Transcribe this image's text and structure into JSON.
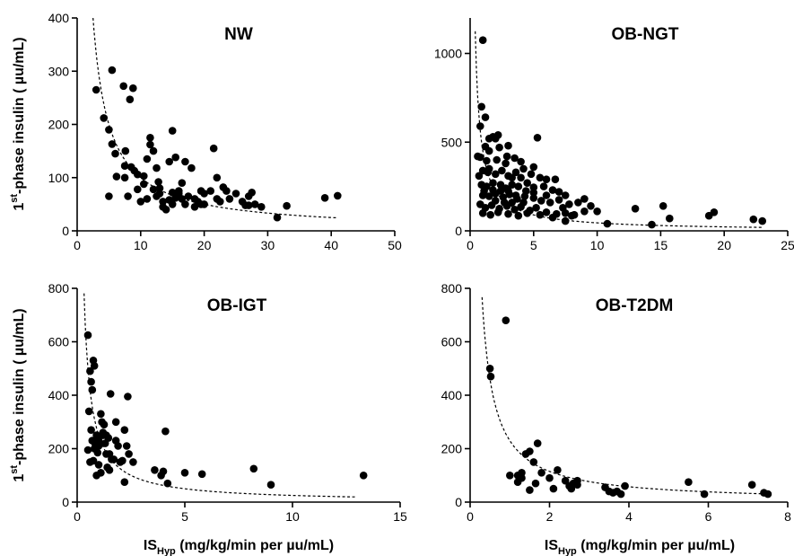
{
  "chart_data": [
    {
      "type": "scatter",
      "title": "NW",
      "xlabel": "",
      "ylabel": {
        "sup": "st",
        "pre": "1",
        "post": "-phase insulin  ( µu/mL)"
      },
      "xlim": [
        0,
        50
      ],
      "ylim": [
        0,
        400
      ],
      "xticks": [
        "0",
        "10",
        "20",
        "30",
        "40",
        "50"
      ],
      "yticks": [
        "0",
        "100",
        "200",
        "300",
        "400"
      ],
      "fit_curve": {
        "style": "dashed",
        "k": 1000,
        "x_range": [
          2.5,
          41
        ]
      },
      "points": [
        [
          3,
          265
        ],
        [
          4.2,
          212
        ],
        [
          5.5,
          302
        ],
        [
          5,
          190
        ],
        [
          5.5,
          163
        ],
        [
          6,
          145
        ],
        [
          6.2,
          102
        ],
        [
          7.3,
          272
        ],
        [
          7.5,
          122
        ],
        [
          7.6,
          150
        ],
        [
          8.3,
          247
        ],
        [
          8.8,
          268
        ],
        [
          9,
          113
        ],
        [
          9.5,
          106
        ],
        [
          8,
          65
        ],
        [
          5,
          65
        ],
        [
          7.5,
          100
        ],
        [
          10.5,
          103
        ],
        [
          11,
          135
        ],
        [
          11.5,
          162
        ],
        [
          11.5,
          175
        ],
        [
          12,
          150
        ],
        [
          12.5,
          118
        ],
        [
          12.8,
          92
        ],
        [
          13,
          80
        ],
        [
          13.5,
          55
        ],
        [
          14,
          40
        ],
        [
          14.5,
          130
        ],
        [
          15,
          188
        ],
        [
          15.5,
          138
        ],
        [
          16,
          75
        ],
        [
          16.5,
          90
        ],
        [
          17,
          130
        ],
        [
          17.5,
          65
        ],
        [
          18,
          118
        ],
        [
          18.5,
          60
        ],
        [
          19,
          55
        ],
        [
          19.5,
          50
        ],
        [
          20,
          70
        ],
        [
          21,
          75
        ],
        [
          21.5,
          155
        ],
        [
          22,
          100
        ],
        [
          23,
          82
        ],
        [
          24,
          60
        ],
        [
          25,
          70
        ],
        [
          26,
          55
        ],
        [
          27,
          65
        ],
        [
          27.5,
          72
        ],
        [
          28,
          50
        ],
        [
          29,
          45
        ],
        [
          31.5,
          25
        ],
        [
          33,
          47
        ],
        [
          39,
          62
        ],
        [
          41,
          66
        ],
        [
          10,
          55
        ],
        [
          11,
          60
        ],
        [
          12.5,
          65
        ],
        [
          13.5,
          45
        ],
        [
          14.5,
          58
        ],
        [
          15.5,
          62
        ],
        [
          16,
          70
        ],
        [
          17,
          50
        ],
        [
          18.5,
          45
        ],
        [
          20,
          50
        ],
        [
          22,
          60
        ],
        [
          23.5,
          75
        ],
        [
          26.5,
          48
        ],
        [
          12,
          78
        ],
        [
          13,
          70
        ],
        [
          15,
          72
        ],
        [
          10.5,
          88
        ],
        [
          9.5,
          78
        ],
        [
          8.5,
          120
        ],
        [
          16.5,
          60
        ],
        [
          19.5,
          75
        ],
        [
          22.5,
          55
        ],
        [
          27,
          48
        ],
        [
          15,
          50
        ]
      ]
    },
    {
      "type": "scatter",
      "title": "OB-NGT",
      "xlabel": "",
      "ylabel": "",
      "xlim": [
        0,
        25
      ],
      "ylim": [
        0,
        1200
      ],
      "xticks": [
        "0",
        "5",
        "10",
        "15",
        "20",
        "25"
      ],
      "yticks": [
        "0",
        "500",
        "1000"
      ],
      "fit_curve": {
        "style": "dashed",
        "k": 450,
        "x_range": [
          0.4,
          23
        ]
      },
      "points": [
        [
          1,
          1075
        ],
        [
          0.9,
          700
        ],
        [
          1.2,
          640
        ],
        [
          0.8,
          590
        ],
        [
          1.5,
          520
        ],
        [
          1.8,
          530
        ],
        [
          2,
          520
        ],
        [
          2.2,
          540
        ],
        [
          5.3,
          525
        ],
        [
          1.2,
          475
        ],
        [
          1.5,
          450
        ],
        [
          2.3,
          470
        ],
        [
          3,
          480
        ],
        [
          0.8,
          415
        ],
        [
          1.3,
          395
        ],
        [
          2.1,
          400
        ],
        [
          2.9,
          420
        ],
        [
          3.5,
          410
        ],
        [
          4,
          390
        ],
        [
          1,
          340
        ],
        [
          1.4,
          330
        ],
        [
          2,
          320
        ],
        [
          2.5,
          340
        ],
        [
          3,
          310
        ],
        [
          3.6,
          330
        ],
        [
          4.2,
          350
        ],
        [
          4.8,
          320
        ],
        [
          5.5,
          300
        ],
        [
          6,
          290
        ],
        [
          6.7,
          290
        ],
        [
          0.9,
          260
        ],
        [
          1.3,
          250
        ],
        [
          1.8,
          270
        ],
        [
          2.4,
          260
        ],
        [
          2.8,
          240
        ],
        [
          3.3,
          260
        ],
        [
          3.8,
          250
        ],
        [
          4.5,
          270
        ],
        [
          5,
          245
        ],
        [
          5.8,
          250
        ],
        [
          6.5,
          230
        ],
        [
          7,
          220
        ],
        [
          7.5,
          200
        ],
        [
          1,
          200
        ],
        [
          1.5,
          195
        ],
        [
          2,
          210
        ],
        [
          2.6,
          190
        ],
        [
          3.1,
          205
        ],
        [
          3.7,
          180
        ],
        [
          4.3,
          195
        ],
        [
          5,
          185
        ],
        [
          5.6,
          170
        ],
        [
          6.3,
          160
        ],
        [
          7,
          175
        ],
        [
          7.8,
          150
        ],
        [
          8.5,
          160
        ],
        [
          9,
          180
        ],
        [
          9.5,
          140
        ],
        [
          10,
          110
        ],
        [
          0.8,
          150
        ],
        [
          1.2,
          130
        ],
        [
          1.7,
          145
        ],
        [
          2.3,
          125
        ],
        [
          2.9,
          140
        ],
        [
          3.5,
          120
        ],
        [
          4,
          135
        ],
        [
          4.7,
          115
        ],
        [
          5.2,
          130
        ],
        [
          6,
          105
        ],
        [
          6.8,
          95
        ],
        [
          7.5,
          100
        ],
        [
          8.2,
          90
        ],
        [
          9,
          110
        ],
        [
          1,
          100
        ],
        [
          1.6,
          90
        ],
        [
          2.2,
          105
        ],
        [
          3,
          95
        ],
        [
          3.8,
          85
        ],
        [
          4.5,
          100
        ],
        [
          5.5,
          90
        ],
        [
          6.5,
          75
        ],
        [
          7.5,
          55
        ],
        [
          8,
          85
        ],
        [
          10.8,
          40
        ],
        [
          13,
          125
        ],
        [
          14.3,
          35
        ],
        [
          15.2,
          140
        ],
        [
          15.7,
          70
        ],
        [
          18.8,
          85
        ],
        [
          19.2,
          105
        ],
        [
          22.3,
          65
        ],
        [
          23,
          55
        ],
        [
          1.5,
          350
        ],
        [
          2.8,
          380
        ],
        [
          3.3,
          300
        ],
        [
          4,
          300
        ],
        [
          5,
          360
        ],
        [
          2,
          170
        ],
        [
          2.7,
          160
        ],
        [
          3.3,
          160
        ],
        [
          4.2,
          160
        ],
        [
          5,
          215
        ],
        [
          6,
          200
        ],
        [
          7.3,
          130
        ],
        [
          0.6,
          420
        ],
        [
          0.7,
          310
        ],
        [
          1.1,
          225
        ],
        [
          1.8,
          230
        ],
        [
          2.4,
          225
        ],
        [
          3,
          225
        ],
        [
          3.6,
          200
        ],
        [
          4.4,
          225
        ]
      ]
    },
    {
      "type": "scatter",
      "title": "OB-IGT",
      "xlabel": {
        "pre": "IS",
        "sub": "Hyp",
        "post": "  (mg/kg/min per  µu/mL)"
      },
      "ylabel": {
        "sup": "st",
        "pre": "1",
        "post": "-phase insulin  ( µu/mL)"
      },
      "xlim": [
        0,
        15
      ],
      "ylim": [
        0,
        800
      ],
      "xticks": [
        "0",
        "5",
        "10",
        "15"
      ],
      "yticks": [
        "0",
        "200",
        "400",
        "600",
        "800"
      ],
      "fit_curve": {
        "style": "dashed",
        "k": 250,
        "x_range": [
          0.32,
          13
        ]
      },
      "points": [
        [
          0.5,
          625
        ],
        [
          0.6,
          490
        ],
        [
          0.65,
          450
        ],
        [
          0.7,
          420
        ],
        [
          0.75,
          530
        ],
        [
          0.8,
          510
        ],
        [
          0.55,
          340
        ],
        [
          0.65,
          270
        ],
        [
          0.7,
          230
        ],
        [
          0.8,
          200
        ],
        [
          0.9,
          250
        ],
        [
          0.95,
          185
        ],
        [
          0.5,
          195
        ],
        [
          0.6,
          150
        ],
        [
          0.75,
          155
        ],
        [
          0.85,
          215
        ],
        [
          1,
          210
        ],
        [
          1.1,
          330
        ],
        [
          1.15,
          300
        ],
        [
          1.2,
          250
        ],
        [
          1.25,
          290
        ],
        [
          1.3,
          220
        ],
        [
          1.35,
          180
        ],
        [
          1.4,
          130
        ],
        [
          1.45,
          240
        ],
        [
          1.5,
          180
        ],
        [
          1.55,
          405
        ],
        [
          1.6,
          160
        ],
        [
          1.7,
          160
        ],
        [
          1.8,
          230
        ],
        [
          1.9,
          210
        ],
        [
          2,
          150
        ],
        [
          2.1,
          155
        ],
        [
          2.2,
          270
        ],
        [
          2.3,
          210
        ],
        [
          2.35,
          395
        ],
        [
          2.4,
          180
        ],
        [
          2.6,
          150
        ],
        [
          2.2,
          75
        ],
        [
          1.5,
          120
        ],
        [
          1.1,
          110
        ],
        [
          1,
          140
        ],
        [
          0.9,
          100
        ],
        [
          3.6,
          120
        ],
        [
          3.9,
          100
        ],
        [
          4,
          115
        ],
        [
          4.1,
          265
        ],
        [
          4.2,
          70
        ],
        [
          5,
          110
        ],
        [
          5.8,
          105
        ],
        [
          8.2,
          125
        ],
        [
          9,
          65
        ],
        [
          13.3,
          100
        ],
        [
          1.2,
          260
        ],
        [
          1.0,
          230
        ],
        [
          1.35,
          250
        ],
        [
          1.8,
          300
        ]
      ]
    },
    {
      "type": "scatter",
      "title": "OB-T2DM",
      "xlabel": {
        "pre": "IS",
        "sub": "Hyp",
        "post": "  (mg/kg/min per  µu/mL)"
      },
      "ylabel": "",
      "xlim": [
        0,
        8
      ],
      "ylim": [
        0,
        800
      ],
      "xticks": [
        "0",
        "2",
        "4",
        "6",
        "8"
      ],
      "yticks": [
        "0",
        "200",
        "400",
        "600",
        "800"
      ],
      "fit_curve": {
        "style": "dashed",
        "k": 230,
        "x_range": [
          0.3,
          7.5
        ]
      },
      "points": [
        [
          0.9,
          680
        ],
        [
          0.5,
          500
        ],
        [
          0.52,
          470
        ],
        [
          1,
          100
        ],
        [
          1.2,
          100
        ],
        [
          1.3,
          110
        ],
        [
          1.4,
          180
        ],
        [
          1.5,
          190
        ],
        [
          1.6,
          150
        ],
        [
          1.7,
          220
        ],
        [
          1.2,
          75
        ],
        [
          1.5,
          45
        ],
        [
          1.8,
          110
        ],
        [
          2,
          90
        ],
        [
          2.1,
          50
        ],
        [
          2.2,
          120
        ],
        [
          2.4,
          80
        ],
        [
          2.55,
          50
        ],
        [
          2.6,
          70
        ],
        [
          2.7,
          80
        ],
        [
          2.7,
          65
        ],
        [
          3.4,
          55
        ],
        [
          3.5,
          40
        ],
        [
          3.6,
          35
        ],
        [
          3.7,
          40
        ],
        [
          3.8,
          30
        ],
        [
          3.9,
          60
        ],
        [
          5.5,
          75
        ],
        [
          5.9,
          30
        ],
        [
          7.1,
          65
        ],
        [
          7.4,
          35
        ],
        [
          7.5,
          30
        ],
        [
          1.3,
          90
        ],
        [
          1.65,
          70
        ],
        [
          2.5,
          60
        ]
      ]
    }
  ]
}
